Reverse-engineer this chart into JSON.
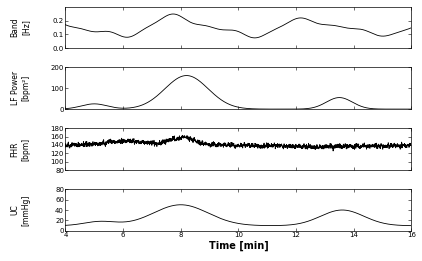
{
  "xlim": [
    4,
    16
  ],
  "xticks": [
    4,
    6,
    8,
    10,
    12,
    14,
    16
  ],
  "xlabel": "Time [min]",
  "panel1": {
    "ylabel": "Band\n[Hz]",
    "ylim": [
      0,
      0.3
    ],
    "yticks": [
      0,
      0.1,
      0.2
    ]
  },
  "panel2": {
    "ylabel": "LF Power\n[bpm²]",
    "ylim": [
      0,
      200
    ],
    "yticks": [
      0,
      100,
      200
    ]
  },
  "panel3": {
    "ylabel": "FHR\n[bpm]",
    "ylim": [
      80,
      180
    ],
    "yticks": [
      80,
      100,
      120,
      140,
      160,
      180
    ]
  },
  "panel4": {
    "ylabel": "UC\n[mmHg]",
    "ylim": [
      0,
      80
    ],
    "yticks": [
      0,
      20,
      40,
      60,
      80
    ]
  },
  "line_color": "#000000",
  "line_width": 0.6,
  "background_color": "#ffffff",
  "tick_labelsize": 5,
  "ylabel_fontsize": 5.5,
  "xlabel_fontsize": 7
}
